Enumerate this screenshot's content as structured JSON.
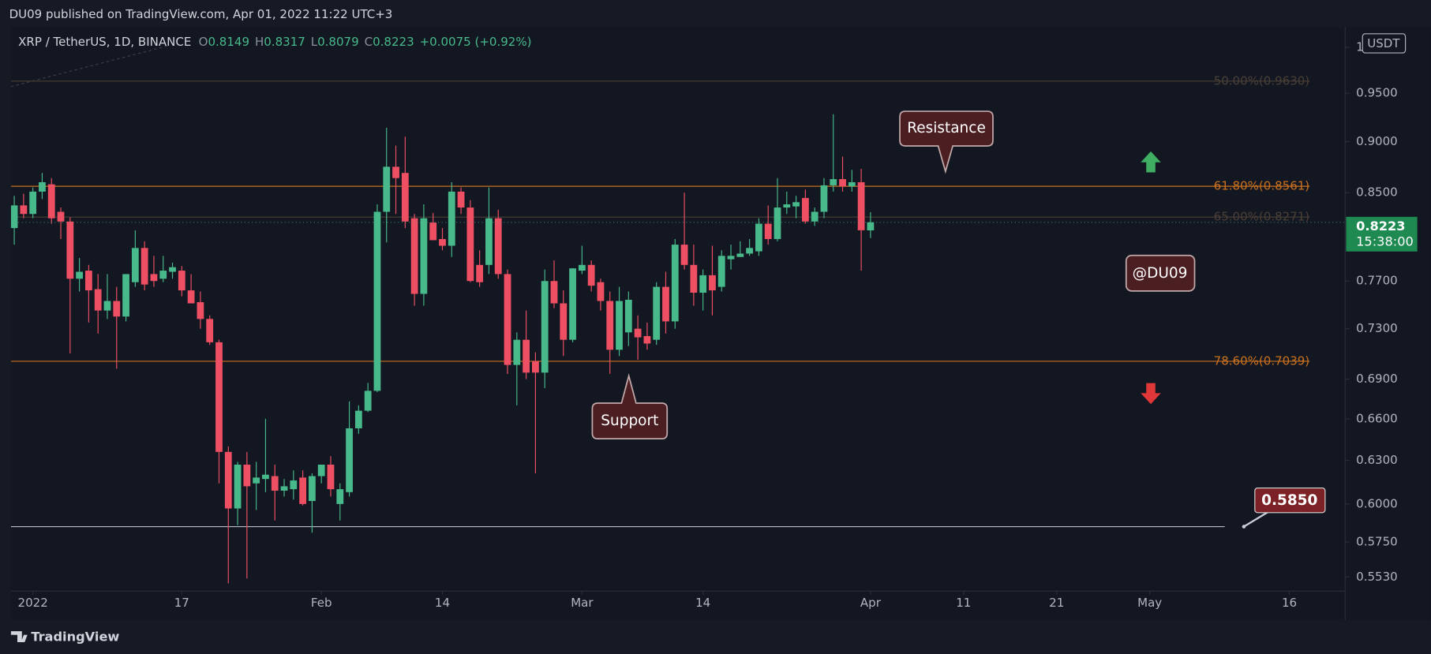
{
  "published": "DU09 published on TradingView.com, Apr 01, 2022 11:22 UTC+3",
  "footer_logo": "TradingView",
  "chart_data": {
    "type": "candlestick",
    "symbol": "XRP / TetherUS, 1D, BINANCE",
    "ohlc_labels": [
      "O",
      "H",
      "L",
      "C"
    ],
    "change": "+0.0075 (+0.92%)",
    "currency": "USDT",
    "countdown": "15:38:00",
    "log": true,
    "grid": false,
    "up_color": "#47b98a",
    "down_color": "#ef4f63",
    "x": [
      "2021-12-30",
      "2021-12-31",
      "2022-01-01",
      "2022-01-02",
      "2022-01-03",
      "2022-01-04",
      "2022-01-05",
      "2022-01-06",
      "2022-01-07",
      "2022-01-08",
      "2022-01-09",
      "2022-01-10",
      "2022-01-11",
      "2022-01-12",
      "2022-01-13",
      "2022-01-14",
      "2022-01-15",
      "2022-01-16",
      "2022-01-17",
      "2022-01-18",
      "2022-01-19",
      "2022-01-20",
      "2022-01-21",
      "2022-01-22",
      "2022-01-23",
      "2022-01-24",
      "2022-01-25",
      "2022-01-26",
      "2022-01-27",
      "2022-01-28",
      "2022-01-29",
      "2022-01-30",
      "2022-01-31",
      "2022-02-01",
      "2022-02-02",
      "2022-02-03",
      "2022-02-04",
      "2022-02-05",
      "2022-02-06",
      "2022-02-07",
      "2022-02-08",
      "2022-02-09",
      "2022-02-10",
      "2022-02-11",
      "2022-02-12",
      "2022-02-13",
      "2022-02-14",
      "2022-02-15",
      "2022-02-16",
      "2022-02-17",
      "2022-02-18",
      "2022-02-19",
      "2022-02-20",
      "2022-02-21",
      "2022-02-22",
      "2022-02-23",
      "2022-02-24",
      "2022-02-25",
      "2022-02-26",
      "2022-02-27",
      "2022-02-28",
      "2022-03-01",
      "2022-03-02",
      "2022-03-03",
      "2022-03-04",
      "2022-03-05",
      "2022-03-06",
      "2022-03-07",
      "2022-03-08",
      "2022-03-09",
      "2022-03-10",
      "2022-03-11",
      "2022-03-12",
      "2022-03-13",
      "2022-03-14",
      "2022-03-15",
      "2022-03-16",
      "2022-03-17",
      "2022-03-18",
      "2022-03-19",
      "2022-03-20",
      "2022-03-21",
      "2022-03-22",
      "2022-03-23",
      "2022-03-24",
      "2022-03-25",
      "2022-03-26",
      "2022-03-27",
      "2022-03-28",
      "2022-03-29",
      "2022-03-30",
      "2022-03-31",
      "2022-04-01"
    ],
    "open": [
      0.817,
      0.838,
      0.83,
      0.851,
      0.858,
      0.832,
      0.823,
      0.772,
      0.779,
      0.763,
      0.745,
      0.753,
      0.74,
      0.769,
      0.799,
      0.776,
      0.772,
      0.778,
      0.779,
      0.762,
      0.752,
      0.738,
      0.719,
      0.636,
      0.597,
      0.627,
      0.614,
      0.617,
      0.619,
      0.609,
      0.61,
      0.618,
      0.602,
      0.619,
      0.627,
      0.6,
      0.608,
      0.653,
      0.666,
      0.681,
      0.832,
      0.875,
      0.869,
      0.826,
      0.759,
      0.822,
      0.807,
      0.801,
      0.851,
      0.836,
      0.784,
      0.784,
      0.826,
      0.776,
      0.701,
      0.721,
      0.704,
      0.695,
      0.77,
      0.751,
      0.721,
      0.779,
      0.784,
      0.769,
      0.753,
      0.713,
      0.727,
      0.73,
      0.724,
      0.721,
      0.765,
      0.736,
      0.802,
      0.784,
      0.76,
      0.775,
      0.765,
      0.789,
      0.791,
      0.794,
      0.796,
      0.821,
      0.807,
      0.836,
      0.837,
      0.845,
      0.823,
      0.832,
      0.857,
      0.863,
      0.856,
      0.86,
      0.8149
    ],
    "high": [
      0.847,
      0.849,
      0.855,
      0.869,
      0.864,
      0.836,
      0.827,
      0.79,
      0.784,
      0.776,
      0.776,
      0.765,
      0.776,
      0.815,
      0.805,
      0.792,
      0.792,
      0.786,
      0.783,
      0.776,
      0.761,
      0.741,
      0.721,
      0.64,
      0.629,
      0.636,
      0.629,
      0.66,
      0.627,
      0.617,
      0.623,
      0.623,
      0.621,
      0.627,
      0.633,
      0.614,
      0.673,
      0.67,
      0.687,
      0.839,
      0.914,
      0.896,
      0.905,
      0.83,
      0.839,
      0.831,
      0.817,
      0.86,
      0.855,
      0.843,
      0.797,
      0.855,
      0.834,
      0.78,
      0.727,
      0.745,
      0.711,
      0.78,
      0.788,
      0.762,
      0.781,
      0.801,
      0.788,
      0.772,
      0.761,
      0.765,
      0.761,
      0.741,
      0.735,
      0.769,
      0.778,
      0.807,
      0.85,
      0.802,
      0.78,
      0.801,
      0.797,
      0.802,
      0.805,
      0.807,
      0.826,
      0.838,
      0.864,
      0.851,
      0.847,
      0.853,
      0.836,
      0.864,
      0.928,
      0.885,
      0.872,
      0.873,
      0.8317
    ],
    "low": [
      0.802,
      0.826,
      0.826,
      0.844,
      0.821,
      0.807,
      0.71,
      0.761,
      0.735,
      0.726,
      0.738,
      0.698,
      0.736,
      0.765,
      0.762,
      0.765,
      0.769,
      0.772,
      0.757,
      0.751,
      0.73,
      0.717,
      0.614,
      0.549,
      0.586,
      0.552,
      0.596,
      0.608,
      0.589,
      0.605,
      0.603,
      0.599,
      0.581,
      0.614,
      0.605,
      0.589,
      0.605,
      0.649,
      0.665,
      0.68,
      0.804,
      0.83,
      0.817,
      0.749,
      0.749,
      0.806,
      0.797,
      0.791,
      0.83,
      0.769,
      0.765,
      0.776,
      0.772,
      0.694,
      0.67,
      0.69,
      0.621,
      0.683,
      0.747,
      0.708,
      0.719,
      0.776,
      0.761,
      0.745,
      0.694,
      0.708,
      0.716,
      0.705,
      0.713,
      0.717,
      0.726,
      0.73,
      0.78,
      0.749,
      0.745,
      0.741,
      0.761,
      0.78,
      0.791,
      0.792,
      0.792,
      0.802,
      0.805,
      0.83,
      0.826,
      0.821,
      0.819,
      0.826,
      0.851,
      0.851,
      0.851,
      0.779,
      0.8079
    ],
    "close": [
      0.838,
      0.83,
      0.851,
      0.86,
      0.826,
      0.823,
      0.772,
      0.778,
      0.762,
      0.745,
      0.753,
      0.74,
      0.776,
      0.799,
      0.767,
      0.77,
      0.779,
      0.782,
      0.762,
      0.751,
      0.738,
      0.719,
      0.636,
      0.597,
      0.627,
      0.612,
      0.618,
      0.62,
      0.609,
      0.612,
      0.616,
      0.6,
      0.619,
      0.627,
      0.61,
      0.61,
      0.653,
      0.666,
      0.681,
      0.832,
      0.875,
      0.864,
      0.823,
      0.759,
      0.826,
      0.806,
      0.801,
      0.851,
      0.836,
      0.77,
      0.769,
      0.826,
      0.776,
      0.701,
      0.721,
      0.695,
      0.695,
      0.77,
      0.751,
      0.721,
      0.781,
      0.784,
      0.766,
      0.753,
      0.713,
      0.753,
      0.754,
      0.723,
      0.718,
      0.765,
      0.736,
      0.802,
      0.784,
      0.76,
      0.775,
      0.762,
      0.792,
      0.792,
      0.794,
      0.799,
      0.821,
      0.807,
      0.836,
      0.839,
      0.841,
      0.823,
      0.832,
      0.857,
      0.863,
      0.856,
      0.86,
      0.815,
      0.8223
    ],
    "xlim": [
      "2021-12-29",
      "2022-05-22"
    ],
    "xticks": [
      {
        "value": "2022-01-01",
        "label": "2022"
      },
      {
        "value": "2022-01-17",
        "label": "17"
      },
      {
        "value": "2022-02-01",
        "label": "Feb"
      },
      {
        "value": "2022-02-14",
        "label": "14"
      },
      {
        "value": "2022-03-01",
        "label": "Mar"
      },
      {
        "value": "2022-03-14",
        "label": "14"
      },
      {
        "value": "2022-04-01",
        "label": "Apr"
      },
      {
        "value": "2022-04-11",
        "label": "11"
      },
      {
        "value": "2022-04-21",
        "label": "21"
      },
      {
        "value": "2022-05-01",
        "label": "May"
      },
      {
        "value": "2022-05-16",
        "label": "16"
      }
    ],
    "ylim": [
      0.5443,
      1.0227
    ],
    "yticks": [
      1,
      {
        "value": 0.95,
        "label": "0.9500"
      },
      {
        "value": 0.9,
        "label": "0.9000"
      },
      {
        "value": 0.85,
        "label": "0.8500"
      },
      {
        "value": 0.77,
        "label": "0.7700"
      },
      {
        "value": 0.73,
        "label": "0.7300"
      },
      {
        "value": 0.69,
        "label": "0.6900"
      },
      {
        "value": 0.66,
        "label": "0.6600"
      },
      {
        "value": 0.63,
        "label": "0.6300"
      },
      {
        "value": 0.6,
        "label": "0.6000"
      },
      {
        "value": 0.575,
        "label": "0.5750"
      },
      {
        "value": 0.553,
        "label": "0.5530"
      }
    ],
    "fib_levels": [
      {
        "value": 0.963,
        "label": "50.00%(0.9630)",
        "color": "#4a3f36"
      },
      {
        "value": 0.8561,
        "label": "61.80%(0.8561)",
        "color": "#c8701e"
      },
      {
        "value": 0.8271,
        "label": "65.00%(0.8271)",
        "color": "#4a3f36"
      },
      {
        "value": 0.7039,
        "label": "78.60%(0.7039)",
        "color": "#c8701e"
      }
    ],
    "horizontal_line": {
      "value": 0.585,
      "label": "0.5850",
      "color": "#b8bcc8"
    },
    "annotations": {
      "resistance": "Resistance",
      "support": "Support",
      "watermark": "@DU09"
    }
  }
}
